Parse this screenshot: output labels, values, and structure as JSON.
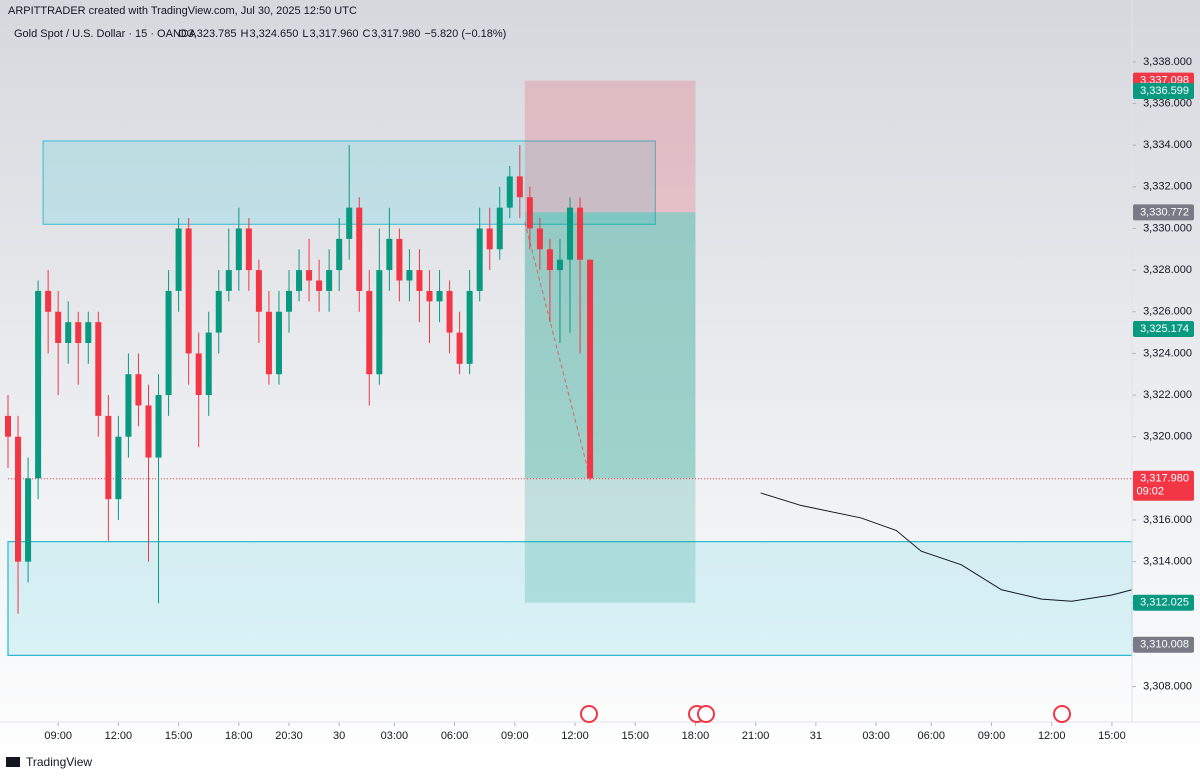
{
  "header": {
    "credit": "ARPITTRADER created with TradingView.com, Jul 30, 2025 12:50 UTC",
    "symbol": "Gold Spot / U.S. Dollar · 15 · OANDA",
    "ohlc": [
      {
        "key": "O",
        "value": "3,323.785"
      },
      {
        "key": "H",
        "value": "3,324.650"
      },
      {
        "key": "L",
        "value": "3,317.960"
      },
      {
        "key": "C",
        "value": "3,317.980"
      }
    ],
    "change": "−5.820 (−0.18%)"
  },
  "footer": {
    "brand": "TradingView"
  },
  "chart_data": {
    "type": "candlestick",
    "up_color": "#089981",
    "down_color": "#f23645",
    "x": [
      -10,
      -8,
      -6,
      -4,
      -2,
      0,
      2,
      4,
      6,
      8,
      10,
      12,
      14,
      16,
      18,
      20,
      22,
      24,
      26,
      28,
      30,
      32,
      34,
      36,
      38,
      40,
      42,
      44,
      46,
      48,
      50,
      52,
      54,
      56,
      58,
      60,
      62,
      64,
      66,
      68,
      70,
      72,
      74,
      76,
      78,
      80,
      82,
      84,
      86,
      88,
      90,
      92,
      94,
      96,
      98,
      100,
      102,
      104,
      106
    ],
    "open": [
      3321,
      3320,
      3314,
      3318,
      3327,
      3326,
      3324.5,
      3325.5,
      3324.5,
      3325.5,
      3321,
      3317,
      3320,
      3323,
      3321.5,
      3319,
      3322,
      3327,
      3330,
      3324,
      3322,
      3325,
      3327,
      3328,
      3330,
      3328,
      3326,
      3323,
      3326,
      3327,
      3328,
      3327.5,
      3327,
      3328,
      3329.5,
      3331,
      3327,
      3323,
      3328,
      3329.5,
      3327.5,
      3328,
      3327,
      3326.5,
      3327,
      3325,
      3323.5,
      3327,
      3330,
      3329,
      3331,
      3332.5,
      3331.5,
      3330,
      3329,
      3328,
      3328.5,
      3331,
      3328.5
    ],
    "high": [
      3322,
      3321,
      3319,
      3327.5,
      3328,
      3327,
      3326.5,
      3326,
      3326,
      3326,
      3322,
      3321,
      3324,
      3324,
      3322.5,
      3323,
      3328,
      3330.5,
      3330.5,
      3325,
      3326,
      3328,
      3330,
      3331,
      3330.5,
      3328.5,
      3327,
      3327,
      3328,
      3329,
      3329.5,
      3328.5,
      3329,
      3330.5,
      3334,
      3331.5,
      3328,
      3330,
      3331,
      3330,
      3329,
      3329,
      3328,
      3328,
      3327.5,
      3326,
      3328,
      3331,
      3331,
      3332,
      3333,
      3334,
      3332,
      3330.5,
      3329.5,
      3329.5,
      3331.5,
      3331.5,
      3328.5
    ],
    "low": [
      3318.5,
      3311.5,
      3313,
      3317,
      3324,
      3322,
      3323.5,
      3322.5,
      3323.5,
      3320,
      3315,
      3316,
      3319,
      3320.5,
      3314,
      3312,
      3321,
      3326,
      3322.5,
      3319.5,
      3321,
      3324,
      3326.5,
      3327,
      3327,
      3324.5,
      3322.5,
      3322.5,
      3325,
      3326.5,
      3326.5,
      3326,
      3326,
      3327,
      3328.5,
      3326,
      3321.5,
      3322.5,
      3327,
      3326.5,
      3326.5,
      3325.5,
      3324.5,
      3325.5,
      3324,
      3323,
      3323,
      3326.5,
      3328,
      3328.5,
      3330.5,
      3330.5,
      3329,
      3328,
      3325.5,
      3324.5,
      3325,
      3324,
      3317.9
    ],
    "close": [
      3320,
      3314,
      3318,
      3327,
      3326,
      3324.5,
      3325.5,
      3324.5,
      3325.5,
      3321,
      3317,
      3320,
      3323,
      3321.5,
      3319,
      3322,
      3327,
      3330,
      3324,
      3322,
      3325,
      3327,
      3328,
      3330,
      3328,
      3326,
      3323,
      3326,
      3327,
      3328,
      3327.5,
      3327,
      3328,
      3329.5,
      3331,
      3327,
      3323,
      3328,
      3329.5,
      3327.5,
      3328,
      3327,
      3326.5,
      3327,
      3325,
      3323.5,
      3327,
      3330,
      3329,
      3331,
      3332.5,
      3331.5,
      3330,
      3329,
      3328,
      3328.5,
      3331,
      3328.5,
      3318
    ],
    "xlim": [
      -10,
      214
    ],
    "ylim": [
      3306.3,
      3339.05
    ],
    "xticks": [
      {
        "value": 0,
        "label": "09:00"
      },
      {
        "value": 12,
        "label": "12:00"
      },
      {
        "value": 24,
        "label": "15:00"
      },
      {
        "value": 36,
        "label": "18:00"
      },
      {
        "value": 46,
        "label": "20:30"
      },
      {
        "value": 56,
        "label": "30"
      },
      {
        "value": 67,
        "label": "03:00"
      },
      {
        "value": 79,
        "label": "06:00"
      },
      {
        "value": 91,
        "label": "09:00"
      },
      {
        "value": 103,
        "label": "12:00"
      },
      {
        "value": 115,
        "label": "15:00"
      },
      {
        "value": 127,
        "label": "18:00"
      },
      {
        "value": 139,
        "label": "21:00"
      },
      {
        "value": 151,
        "label": "31"
      },
      {
        "value": 163,
        "label": "03:00"
      },
      {
        "value": 174,
        "label": "06:00"
      },
      {
        "value": 186,
        "label": "09:00"
      },
      {
        "value": 198,
        "label": "12:00"
      },
      {
        "value": 210,
        "label": "15:00"
      }
    ],
    "yticks": [
      {
        "value": 3308,
        "label": "3,308.000"
      },
      {
        "value": 3310,
        "label": "3,310.000"
      },
      {
        "value": 3312,
        "label": "3,312.000"
      },
      {
        "value": 3314,
        "label": "3,314.000"
      },
      {
        "value": 3316,
        "label": "3,316.000"
      },
      {
        "value": 3318,
        "label": "3,318.000"
      },
      {
        "value": 3320,
        "label": "3,320.000"
      },
      {
        "value": 3322,
        "label": "3,322.000"
      },
      {
        "value": 3324,
        "label": "3,324.000"
      },
      {
        "value": 3326,
        "label": "3,326.000"
      },
      {
        "value": 3328,
        "label": "3,328.000"
      },
      {
        "value": 3330,
        "label": "3,330.000"
      },
      {
        "value": 3332,
        "label": "3,332.000"
      },
      {
        "value": 3334,
        "label": "3,334.000"
      },
      {
        "value": 3336,
        "label": "3,336.000"
      },
      {
        "value": 3338,
        "label": "3,338.000"
      }
    ],
    "zones": [
      {
        "top": 3334.2,
        "bottom": 3330.2,
        "x": [
          -3,
          119
        ]
      },
      {
        "top": 3314.96,
        "bottom": 3309.5,
        "x": [
          -10,
          214
        ]
      }
    ],
    "position": {
      "entry": 3330.772,
      "stop": 3337.098,
      "target": 3312.025,
      "x": [
        93,
        127
      ]
    },
    "trend_line": {
      "x": [
        93,
        106
      ],
      "y": [
        3330.3,
        3318
      ]
    },
    "projection": {
      "x": [
        140,
        148,
        160,
        167,
        172,
        180,
        188,
        196,
        202,
        210,
        214
      ],
      "y": [
        3317.3,
        3316.7,
        3316.1,
        3315.5,
        3314.5,
        3313.85,
        3312.65,
        3312.2,
        3312.1,
        3312.4,
        3312.65
      ]
    },
    "last_price": 3317.98,
    "countdown": "09:02",
    "price_labels": [
      {
        "value": 3337.098,
        "label": "3,337.098",
        "color": "#f23645"
      },
      {
        "value": 3336.599,
        "label": "3,336.599",
        "color": "#089981"
      },
      {
        "value": 3330.772,
        "label": "3,330.772",
        "color": "#787b86"
      },
      {
        "value": 3325.174,
        "label": "3,325.174",
        "color": "#089981"
      },
      {
        "value": 3317.98,
        "label": "3,317.980",
        "color": "#f23645"
      },
      {
        "value": 3312.025,
        "label": "3,312.025",
        "color": "#089981"
      },
      {
        "value": 3310.008,
        "label": "3,310.008",
        "color": "#787b86"
      }
    ]
  }
}
